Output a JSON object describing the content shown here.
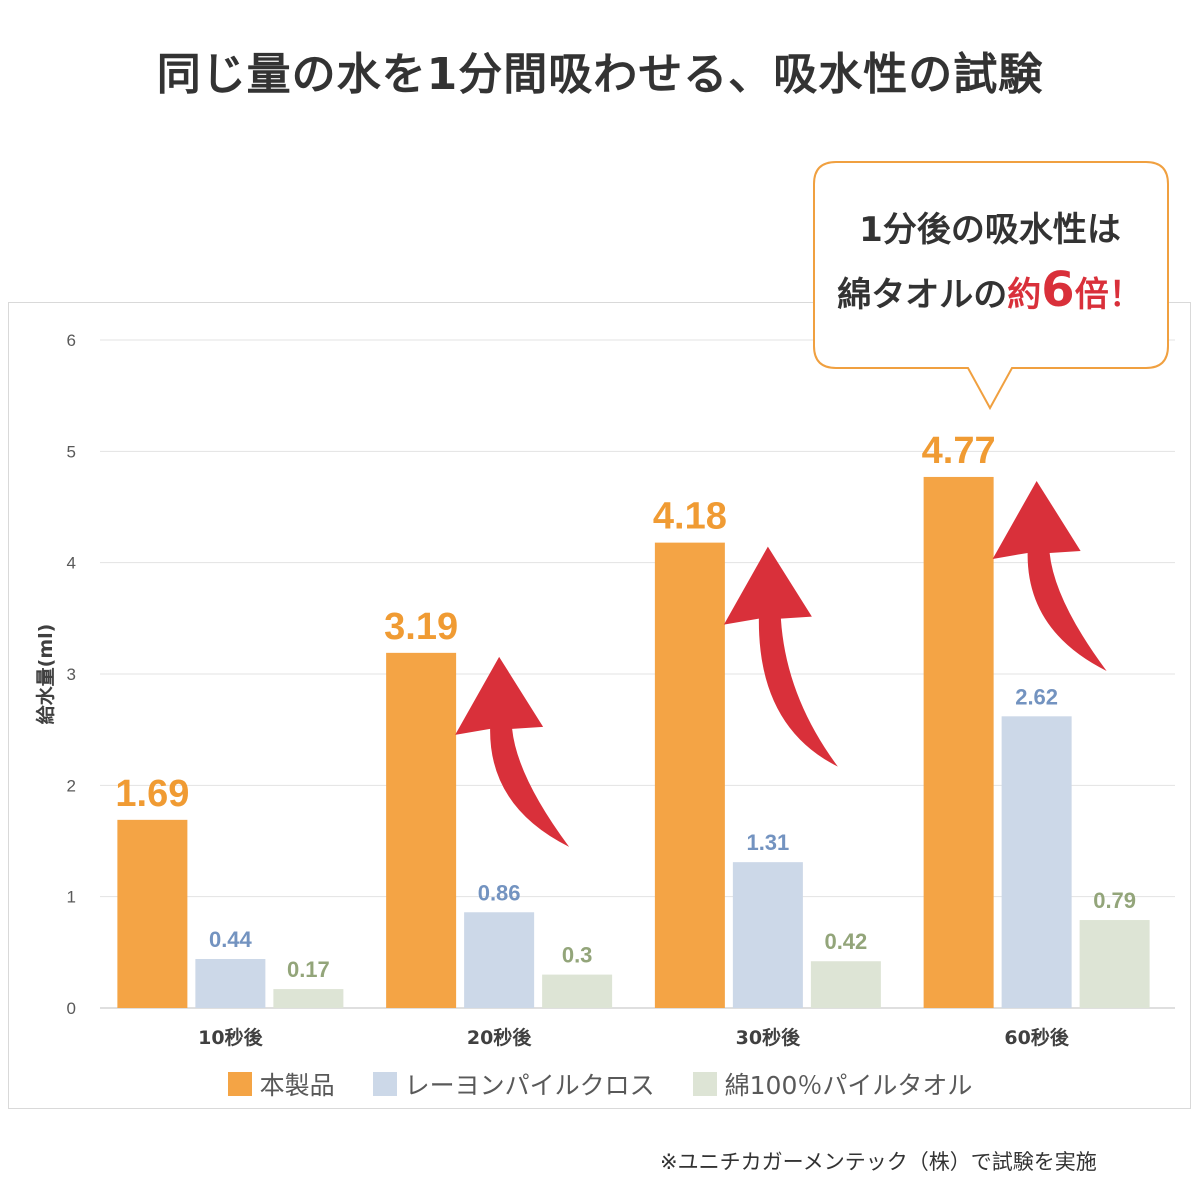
{
  "title": "同じ量の水を1分間吸わせる、吸水性の試験",
  "callout": {
    "line1": "1分後の吸水性は",
    "line2_prefix": "綿タオルの",
    "line2_red_a": "約",
    "line2_red_big": "6",
    "line2_red_b": "倍",
    "line2_suffix": "！"
  },
  "footnote": "※ユニチカガーメンテック（株）で試験を実施",
  "colors": {
    "series1": "#f4a445",
    "series2": "#ccd8e8",
    "series3": "#dde4d5",
    "label1": "#f09b33",
    "label2": "#7393c0",
    "label3": "#93a57a",
    "arrow": "#d9303a"
  },
  "chart_data": {
    "type": "bar",
    "categories": [
      "10秒後",
      "20秒後",
      "30秒後",
      "60秒後"
    ],
    "series": [
      {
        "name": "本製品",
        "values": [
          1.69,
          3.19,
          4.18,
          4.77
        ]
      },
      {
        "name": "レーヨンパイルクロス",
        "values": [
          0.44,
          0.86,
          1.31,
          2.62
        ]
      },
      {
        "name": "綿100％パイルタオル",
        "values": [
          0.17,
          0.3,
          0.42,
          0.79
        ]
      }
    ],
    "value_labels": [
      [
        "1.69",
        "3.19",
        "4.18",
        "4.77"
      ],
      [
        "0.44",
        "0.86",
        "1.31",
        "2.62"
      ],
      [
        "0.17",
        "0.3",
        "0.42",
        "0.79"
      ]
    ],
    "ylabel": "給水量(ml)",
    "ylim": [
      0,
      6
    ],
    "yticks": [
      "0",
      "1",
      "2",
      "3",
      "4",
      "5",
      "6"
    ],
    "grid": true,
    "legend": "bottom"
  }
}
